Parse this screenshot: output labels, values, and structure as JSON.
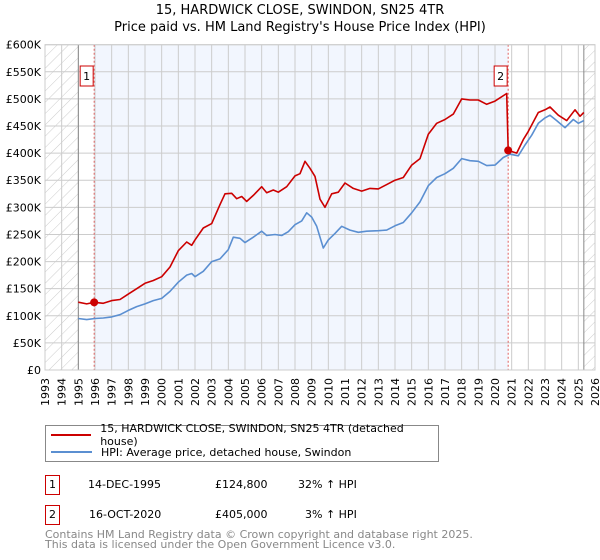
{
  "title_line1": "15, HARDWICK CLOSE, SWINDON, SN25 4TR",
  "title_line2": "Price paid vs. HM Land Registry's House Price Index (HPI)",
  "legend": {
    "series1": "15, HARDWICK CLOSE, SWINDON, SN25 4TR (detached house)",
    "series2": "HPI: Average price, detached house, Swindon"
  },
  "sales": [
    {
      "num": "1",
      "date": "14-DEC-1995",
      "price": "£124,800",
      "hpi": "32% ↑ HPI"
    },
    {
      "num": "2",
      "date": "16-OCT-2020",
      "price": "£405,000",
      "hpi": "3% ↑ HPI"
    }
  ],
  "footer": {
    "line1": "Contains HM Land Registry data © Crown copyright and database right 2025.",
    "line2": "This data is licensed under the Open Government Licence v3.0."
  },
  "colors": {
    "property": "#cc0000",
    "hpi": "#5b8fd1",
    "shade": "#f2f6fe"
  },
  "chart_data": {
    "type": "line",
    "xlim": [
      1993,
      2026
    ],
    "ylim": [
      0,
      600000
    ],
    "y_ticks": [
      0,
      50000,
      100000,
      150000,
      200000,
      250000,
      300000,
      350000,
      400000,
      450000,
      500000,
      550000,
      600000
    ],
    "y_tick_labels": [
      "£0",
      "£50K",
      "£100K",
      "£150K",
      "£200K",
      "£250K",
      "£300K",
      "£350K",
      "£400K",
      "£450K",
      "£500K",
      "£550K",
      "£600K"
    ],
    "x_ticks": [
      "1993",
      "1994",
      "1995",
      "1996",
      "1997",
      "1998",
      "1999",
      "2000",
      "2001",
      "2002",
      "2003",
      "2004",
      "2005",
      "2006",
      "2007",
      "2008",
      "2009",
      "2010",
      "2011",
      "2012",
      "2013",
      "2014",
      "2015",
      "2016",
      "2017",
      "2018",
      "2019",
      "2020",
      "2021",
      "2022",
      "2023",
      "2024",
      "2025",
      "2026"
    ],
    "grid": true,
    "data_start": 1995.0,
    "data_end": 2025.33,
    "sale_markers": [
      {
        "label": "1",
        "x": 1995.95,
        "y": 124800
      },
      {
        "label": "2",
        "x": 2020.79,
        "y": 405000
      }
    ],
    "series": [
      {
        "name": "15, HARDWICK CLOSE, SWINDON, SN25 4TR (detached house)",
        "color": "#cc0000",
        "points": [
          [
            1995.0,
            125000
          ],
          [
            1995.5,
            122000
          ],
          [
            1995.95,
            124800
          ],
          [
            1996.5,
            123000
          ],
          [
            1997,
            128000
          ],
          [
            1997.5,
            130000
          ],
          [
            1998,
            140000
          ],
          [
            1998.5,
            150000
          ],
          [
            1999,
            160000
          ],
          [
            1999.5,
            165000
          ],
          [
            2000,
            172000
          ],
          [
            2000.5,
            190000
          ],
          [
            2001,
            220000
          ],
          [
            2001.5,
            236000
          ],
          [
            2001.8,
            230000
          ],
          [
            2002,
            240000
          ],
          [
            2002.5,
            262000
          ],
          [
            2003,
            270000
          ],
          [
            2003.5,
            305000
          ],
          [
            2003.8,
            325000
          ],
          [
            2004.2,
            326000
          ],
          [
            2004.5,
            316000
          ],
          [
            2004.8,
            320000
          ],
          [
            2005.1,
            311000
          ],
          [
            2005.5,
            322000
          ],
          [
            2006,
            338000
          ],
          [
            2006.3,
            327000
          ],
          [
            2006.7,
            332000
          ],
          [
            2007,
            328000
          ],
          [
            2007.5,
            338000
          ],
          [
            2008,
            358000
          ],
          [
            2008.3,
            362000
          ],
          [
            2008.6,
            385000
          ],
          [
            2008.9,
            372000
          ],
          [
            2009.2,
            357000
          ],
          [
            2009.5,
            315000
          ],
          [
            2009.8,
            300000
          ],
          [
            2010.2,
            325000
          ],
          [
            2010.6,
            328000
          ],
          [
            2011,
            345000
          ],
          [
            2011.5,
            335000
          ],
          [
            2012,
            330000
          ],
          [
            2012.5,
            335000
          ],
          [
            2013,
            334000
          ],
          [
            2013.5,
            342000
          ],
          [
            2014,
            350000
          ],
          [
            2014.5,
            355000
          ],
          [
            2015,
            378000
          ],
          [
            2015.5,
            390000
          ],
          [
            2016,
            435000
          ],
          [
            2016.5,
            455000
          ],
          [
            2017,
            462000
          ],
          [
            2017.5,
            472000
          ],
          [
            2018,
            500000
          ],
          [
            2018.5,
            498000
          ],
          [
            2019,
            498000
          ],
          [
            2019.5,
            490000
          ],
          [
            2020,
            496000
          ],
          [
            2020.7,
            510000
          ],
          [
            2020.79,
            405000
          ],
          [
            2021.3,
            400000
          ],
          [
            2021.7,
            425000
          ],
          [
            2022,
            440000
          ],
          [
            2022.6,
            475000
          ],
          [
            2023,
            480000
          ],
          [
            2023.3,
            485000
          ],
          [
            2023.8,
            470000
          ],
          [
            2024.3,
            460000
          ],
          [
            2024.8,
            480000
          ],
          [
            2025.1,
            468000
          ],
          [
            2025.33,
            475000
          ]
        ]
      },
      {
        "name": "HPI: Average price, detached house, Swindon",
        "color": "#5b8fd1",
        "points": [
          [
            1995.0,
            95000
          ],
          [
            1995.5,
            93000
          ],
          [
            1996,
            95000
          ],
          [
            1996.5,
            96000
          ],
          [
            1997,
            98000
          ],
          [
            1997.5,
            102000
          ],
          [
            1998,
            110000
          ],
          [
            1998.5,
            117000
          ],
          [
            1999,
            122000
          ],
          [
            1999.5,
            128000
          ],
          [
            2000,
            132000
          ],
          [
            2000.5,
            145000
          ],
          [
            2001,
            162000
          ],
          [
            2001.5,
            175000
          ],
          [
            2001.8,
            178000
          ],
          [
            2002,
            172000
          ],
          [
            2002.5,
            182000
          ],
          [
            2003,
            200000
          ],
          [
            2003.5,
            205000
          ],
          [
            2004,
            222000
          ],
          [
            2004.3,
            245000
          ],
          [
            2004.7,
            243000
          ],
          [
            2005,
            235000
          ],
          [
            2005.5,
            245000
          ],
          [
            2006,
            256000
          ],
          [
            2006.3,
            248000
          ],
          [
            2006.8,
            250000
          ],
          [
            2007.2,
            248000
          ],
          [
            2007.6,
            255000
          ],
          [
            2008,
            268000
          ],
          [
            2008.4,
            275000
          ],
          [
            2008.7,
            290000
          ],
          [
            2009,
            282000
          ],
          [
            2009.3,
            265000
          ],
          [
            2009.7,
            225000
          ],
          [
            2010,
            240000
          ],
          [
            2010.4,
            252000
          ],
          [
            2010.8,
            265000
          ],
          [
            2011.3,
            258000
          ],
          [
            2011.8,
            254000
          ],
          [
            2012.3,
            256000
          ],
          [
            2013,
            257000
          ],
          [
            2013.5,
            258000
          ],
          [
            2014,
            266000
          ],
          [
            2014.5,
            272000
          ],
          [
            2015,
            290000
          ],
          [
            2015.5,
            310000
          ],
          [
            2016,
            340000
          ],
          [
            2016.5,
            355000
          ],
          [
            2017,
            362000
          ],
          [
            2017.5,
            372000
          ],
          [
            2018,
            390000
          ],
          [
            2018.5,
            386000
          ],
          [
            2019,
            385000
          ],
          [
            2019.5,
            377000
          ],
          [
            2020,
            378000
          ],
          [
            2020.5,
            392000
          ],
          [
            2020.9,
            398000
          ],
          [
            2021.4,
            395000
          ],
          [
            2021.8,
            415000
          ],
          [
            2022.2,
            433000
          ],
          [
            2022.6,
            455000
          ],
          [
            2023,
            465000
          ],
          [
            2023.3,
            470000
          ],
          [
            2023.7,
            460000
          ],
          [
            2024.2,
            447000
          ],
          [
            2024.7,
            462000
          ],
          [
            2025,
            455000
          ],
          [
            2025.33,
            460000
          ]
        ]
      }
    ]
  }
}
